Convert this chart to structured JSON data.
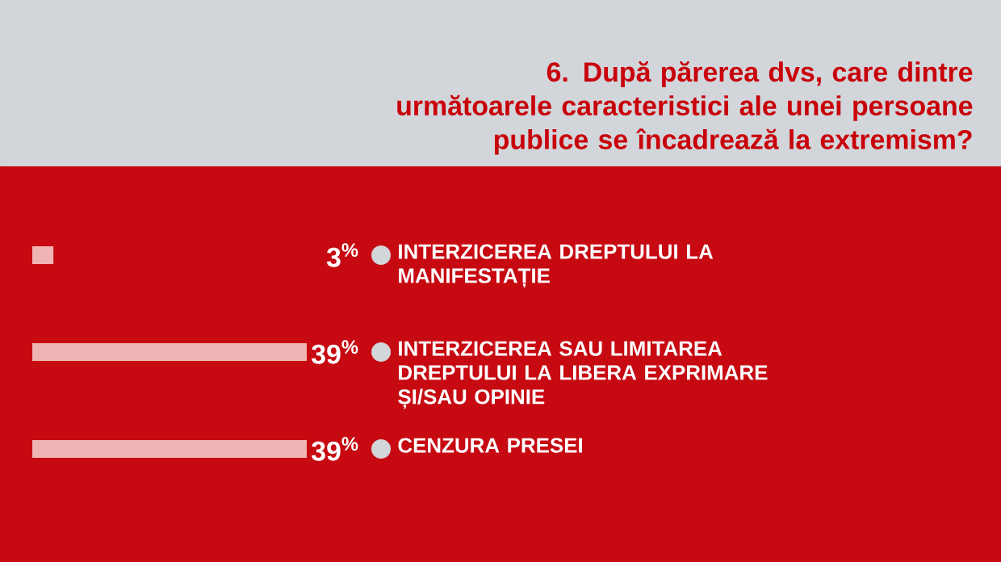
{
  "chart_data": {
    "type": "bar",
    "orientation": "horizontal",
    "title": "6. După părerea dvs, care dintre următoarele caracteristici ale unei persoane publice se încadrează la extremism?",
    "categories": [
      "INTERZICEREA DREPTULUI LA MANIFESTAȚIE",
      "INTERZICEREA SAU LIMITAREA DREPTULUI LA LIBERA EXPRIMARE ȘI/SAU OPINIE",
      "CENZURA PRESEI"
    ],
    "values": [
      3,
      39,
      39
    ],
    "color": "#f0b4b4",
    "value_labels": [
      "3$^{%}$",
      "39$^{%}$",
      "39$^{%}$"
    ]
  }
}
